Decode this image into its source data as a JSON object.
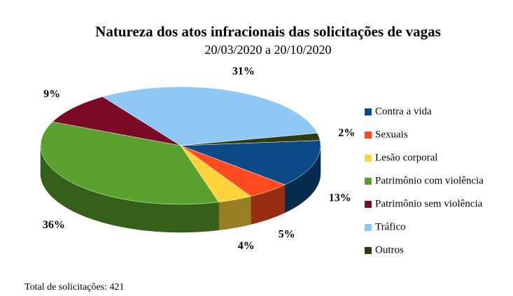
{
  "chart_data": {
    "type": "pie",
    "title": "Natureza dos atos infracionais das solicitações de vagas",
    "subtitle": "20/03/2020 a 20/10/2020",
    "categories": [
      "Contra a vida",
      "Sexuais",
      "Lesão corporal",
      "Patrimônio com violência",
      "Patrimônio sem violência",
      "Tráfico",
      "Outros"
    ],
    "values": [
      13,
      5,
      4,
      36,
      9,
      31,
      2
    ],
    "value_labels": [
      "13%",
      "5%",
      "4%",
      "36%",
      "9%",
      "31%",
      "2%"
    ],
    "colors": [
      "#0b4a86",
      "#ff4b1f",
      "#ffd43b",
      "#5aa02c",
      "#7a0a25",
      "#8fc8f5",
      "#2e3b13"
    ],
    "legend": "right",
    "note": "Total de solicitações: 421"
  }
}
